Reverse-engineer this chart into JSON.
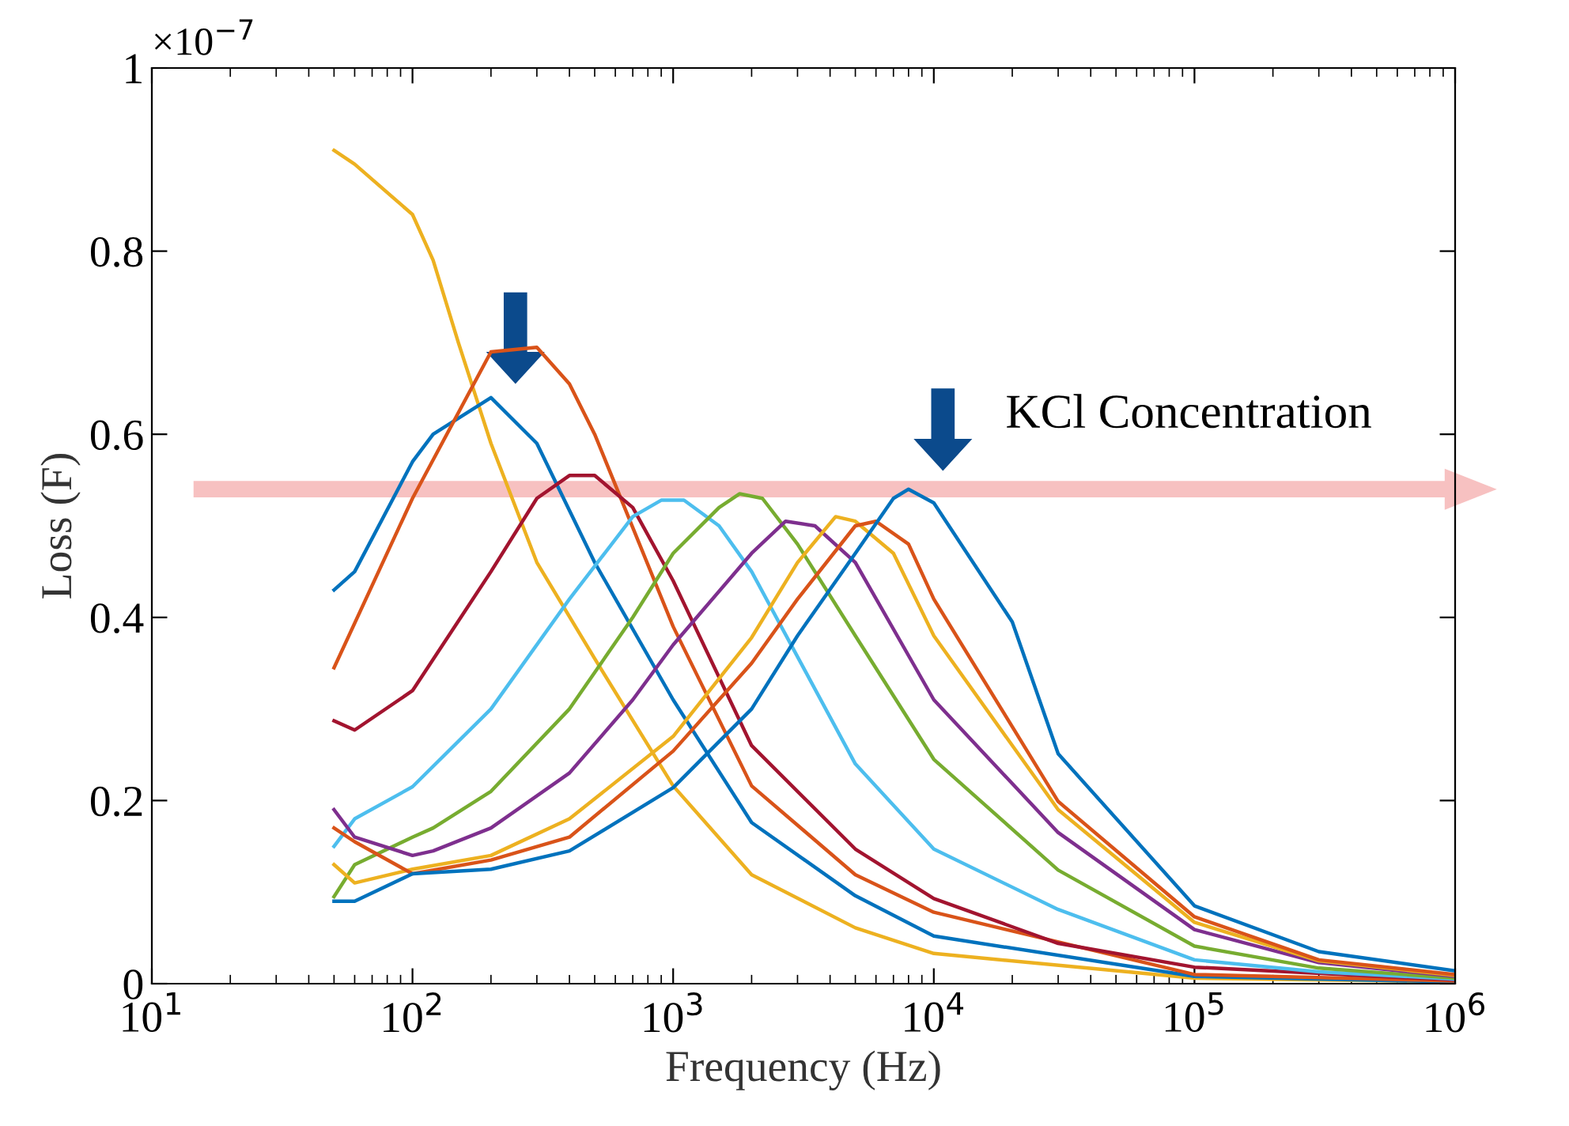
{
  "chart_data": {
    "type": "line",
    "xlabel": "Frequency (Hz)",
    "ylabel": "Loss (F)",
    "annotations": [
      "×10$^{−7}$",
      "KCl Concentration"
    ],
    "log": "x",
    "grid": false,
    "legend": false,
    "xlim": [
      10,
      1000000
    ],
    "xticks": [
      {
        "value": 10,
        "label": "10$^{1}$"
      },
      {
        "value": 100,
        "label": "10$^{2}$"
      },
      {
        "value": 1000,
        "label": "10$^{3}$"
      },
      {
        "value": 10000,
        "label": "10$^{4}$"
      },
      {
        "value": 100000,
        "label": "10$^{5}$"
      },
      {
        "value": 1000000,
        "label": "10$^{6}$"
      }
    ],
    "ylim": [
      0,
      1
    ],
    "yticks": [
      0,
      0.2,
      0.4,
      0.6,
      0.8,
      1
    ],
    "series": [
      {
        "color": "#edb120",
        "x": [
          50,
          60,
          100,
          120,
          150,
          200,
          300,
          500,
          1000,
          2000,
          5000,
          10000,
          100000,
          1000000
        ],
        "values": [
          0.91,
          0.895,
          0.84,
          0.79,
          0.7,
          0.59,
          0.46,
          0.355,
          0.216,
          0.119,
          0.061,
          0.033,
          0.006,
          0.002
        ]
      },
      {
        "color": "#0072bd",
        "x": [
          50,
          60,
          100,
          120,
          200,
          300,
          500,
          1000,
          2000,
          5000,
          10000,
          100000,
          1000000
        ],
        "values": [
          0.43,
          0.45,
          0.57,
          0.6,
          0.64,
          0.59,
          0.46,
          0.31,
          0.176,
          0.096,
          0.052,
          0.008,
          0.002
        ]
      },
      {
        "color": "#d95319",
        "x": [
          50,
          100,
          200,
          300,
          400,
          500,
          1000,
          2000,
          5000,
          10000,
          100000,
          1000000
        ],
        "values": [
          0.345,
          0.53,
          0.69,
          0.695,
          0.655,
          0.6,
          0.39,
          0.216,
          0.119,
          0.078,
          0.01,
          0.003
        ]
      },
      {
        "color": "#a2142f",
        "x": [
          50,
          60,
          100,
          200,
          300,
          400,
          500,
          700,
          1000,
          2000,
          5000,
          10000,
          30000,
          100000,
          1000000
        ],
        "values": [
          0.287,
          0.277,
          0.32,
          0.45,
          0.53,
          0.555,
          0.555,
          0.52,
          0.44,
          0.26,
          0.147,
          0.093,
          0.044,
          0.018,
          0.004
        ]
      },
      {
        "color": "#4dbeee",
        "x": [
          50,
          60,
          100,
          200,
          400,
          700,
          900,
          1100,
          1500,
          2000,
          5000,
          10000,
          30000,
          100000,
          300000,
          1000000
        ],
        "values": [
          0.15,
          0.18,
          0.215,
          0.3,
          0.42,
          0.51,
          0.528,
          0.528,
          0.5,
          0.45,
          0.24,
          0.147,
          0.081,
          0.026,
          0.013,
          0.005
        ]
      },
      {
        "color": "#77ac30",
        "x": [
          50,
          60,
          100,
          120,
          200,
          400,
          700,
          1000,
          1500,
          1800,
          2200,
          3000,
          5000,
          10000,
          30000,
          100000,
          300000,
          1000000
        ],
        "values": [
          0.095,
          0.13,
          0.16,
          0.17,
          0.21,
          0.3,
          0.4,
          0.47,
          0.52,
          0.535,
          0.53,
          0.48,
          0.38,
          0.245,
          0.124,
          0.041,
          0.017,
          0.006
        ]
      },
      {
        "color": "#7e2f8e",
        "x": [
          50,
          60,
          100,
          120,
          200,
          400,
          700,
          1000,
          2000,
          2700,
          3500,
          5000,
          10000,
          30000,
          100000,
          300000,
          1000000
        ],
        "values": [
          0.19,
          0.16,
          0.14,
          0.145,
          0.17,
          0.23,
          0.31,
          0.37,
          0.47,
          0.505,
          0.5,
          0.46,
          0.31,
          0.165,
          0.059,
          0.023,
          0.008
        ]
      },
      {
        "color": "#edb120",
        "x": [
          50,
          60,
          100,
          200,
          400,
          1000,
          2000,
          3000,
          4200,
          5000,
          7000,
          10000,
          30000,
          100000,
          300000,
          1000000
        ],
        "values": [
          0.13,
          0.11,
          0.125,
          0.14,
          0.18,
          0.27,
          0.378,
          0.46,
          0.51,
          0.505,
          0.47,
          0.38,
          0.19,
          0.067,
          0.025,
          0.009
        ]
      },
      {
        "color": "#d95319",
        "x": [
          50,
          60,
          100,
          200,
          400,
          1000,
          2000,
          3000,
          5000,
          6000,
          8000,
          10000,
          30000,
          100000,
          300000,
          1000000
        ],
        "values": [
          0.17,
          0.155,
          0.12,
          0.135,
          0.16,
          0.254,
          0.35,
          0.42,
          0.5,
          0.505,
          0.48,
          0.42,
          0.199,
          0.073,
          0.026,
          0.01
        ]
      },
      {
        "color": "#0072bd",
        "x": [
          50,
          60,
          100,
          200,
          400,
          1000,
          2000,
          3000,
          5000,
          7000,
          8000,
          10000,
          20000,
          30000,
          100000,
          300000,
          1000000
        ],
        "values": [
          0.09,
          0.09,
          0.12,
          0.125,
          0.145,
          0.214,
          0.3,
          0.38,
          0.47,
          0.53,
          0.54,
          0.525,
          0.395,
          0.251,
          0.085,
          0.035,
          0.014
        ]
      }
    ]
  }
}
